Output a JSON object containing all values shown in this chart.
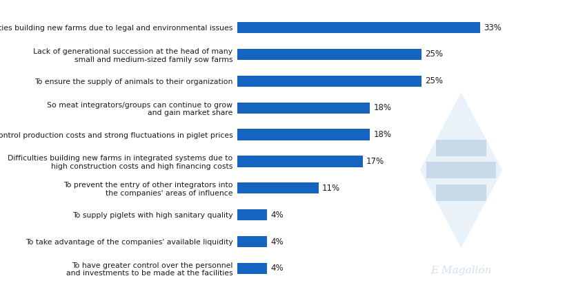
{
  "categories": [
    "To have greater control over the personnel\nand investments to be made at the facilities",
    "To take advantage of the companies' available liquidity",
    "To supply piglets with high sanitary quality",
    "To prevent the entry of other integrators into\nthe companies' areas of influence",
    "Difficulties building new farms in integrated systems due to\nhigh construction costs and high financing costs",
    "To control production costs and strong fluctuations in piglet prices",
    "So meat integrators/groups can continue to grow\nand gain market share",
    "To ensure the supply of animals to their organization",
    "Lack of generational succession at the head of many\nsmall and medium-sized family sow farms",
    "Difficulties building new farms due to legal and environmental issues"
  ],
  "values": [
    4,
    4,
    4,
    11,
    17,
    18,
    18,
    25,
    25,
    33
  ],
  "bar_color": "#1565C0",
  "background_color": "#ffffff",
  "label_color": "#1a1a1a",
  "value_color": "#1a1a1a",
  "xlim": [
    0,
    40
  ],
  "bar_height": 0.42,
  "fontsize_labels": 7.8,
  "fontsize_values": 8.5,
  "watermark_text": "E Magallón",
  "watermark_color": "#b8cde0",
  "watermark_alpha": 0.6
}
